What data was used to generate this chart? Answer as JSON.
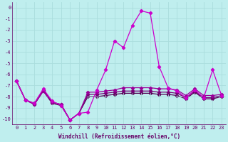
{
  "xlabel": "Windchill (Refroidissement éolien,°C)",
  "x": [
    0,
    1,
    2,
    3,
    4,
    5,
    6,
    7,
    8,
    9,
    10,
    11,
    12,
    13,
    14,
    15,
    16,
    17,
    18,
    19,
    20,
    21,
    22,
    23
  ],
  "series": [
    [
      -6.6,
      -8.3,
      -8.6,
      -7.3,
      -8.4,
      -8.8,
      -10.1,
      -9.5,
      -9.4,
      -7.4,
      -5.6,
      -3.0,
      -3.6,
      -1.6,
      -0.3,
      -0.5,
      -5.3,
      -7.2,
      -7.5,
      -8.1,
      -7.4,
      -8.1,
      -5.6,
      -7.9
    ],
    [
      -6.6,
      -8.3,
      -8.7,
      -7.5,
      -8.5,
      -8.7,
      -10.1,
      -9.5,
      -7.6,
      -7.6,
      -7.5,
      -7.4,
      -7.2,
      -7.2,
      -7.2,
      -7.2,
      -7.3,
      -7.3,
      -7.4,
      -7.9,
      -7.3,
      -7.9,
      -7.9,
      -7.8
    ],
    [
      -6.6,
      -8.3,
      -8.6,
      -7.4,
      -8.5,
      -8.7,
      -10.1,
      -9.5,
      -7.8,
      -7.8,
      -7.7,
      -7.6,
      -7.5,
      -7.5,
      -7.5,
      -7.5,
      -7.6,
      -7.6,
      -7.7,
      -8.1,
      -7.5,
      -8.1,
      -8.1,
      -7.9
    ],
    [
      -6.6,
      -8.3,
      -8.7,
      -7.5,
      -8.6,
      -8.8,
      -10.1,
      -9.5,
      -8.0,
      -8.0,
      -7.9,
      -7.8,
      -7.7,
      -7.7,
      -7.7,
      -7.7,
      -7.8,
      -7.8,
      -7.9,
      -8.2,
      -7.6,
      -8.2,
      -8.2,
      -8.0
    ]
  ],
  "line_colors": [
    "#cc00cc",
    "#990099",
    "#770077",
    "#550055"
  ],
  "marker": "D",
  "markersize": 2.2,
  "linewidth": 0.9,
  "ylim": [
    -10.5,
    0.5
  ],
  "yticks": [
    0,
    -1,
    -2,
    -3,
    -4,
    -5,
    -6,
    -7,
    -8,
    -9,
    -10
  ],
  "xticks": [
    0,
    1,
    2,
    3,
    4,
    5,
    6,
    7,
    8,
    9,
    10,
    11,
    12,
    13,
    14,
    15,
    16,
    17,
    18,
    19,
    20,
    21,
    22,
    23
  ],
  "bg_color": "#bfeeee",
  "grid_color": "#aadddd",
  "text_color": "#660066",
  "label_fontsize": 5.5,
  "tick_fontsize": 5
}
